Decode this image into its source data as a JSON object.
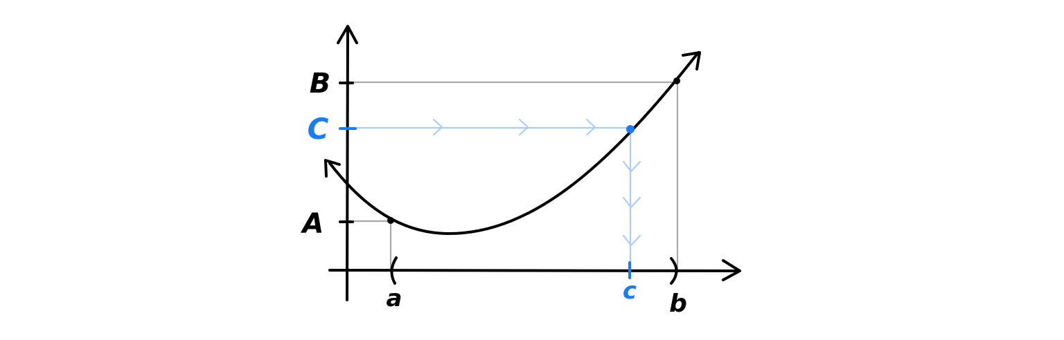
{
  "diagram": {
    "labels": {
      "y_B": "B",
      "y_C": "C",
      "y_A": "A",
      "x_a": "a",
      "x_c": "c",
      "x_b": "b"
    },
    "colors": {
      "ink": "#000000",
      "guide": "#a9a9a9",
      "highlight": "#1a7cf0",
      "highlight_light": "#a9cdf7"
    }
  }
}
